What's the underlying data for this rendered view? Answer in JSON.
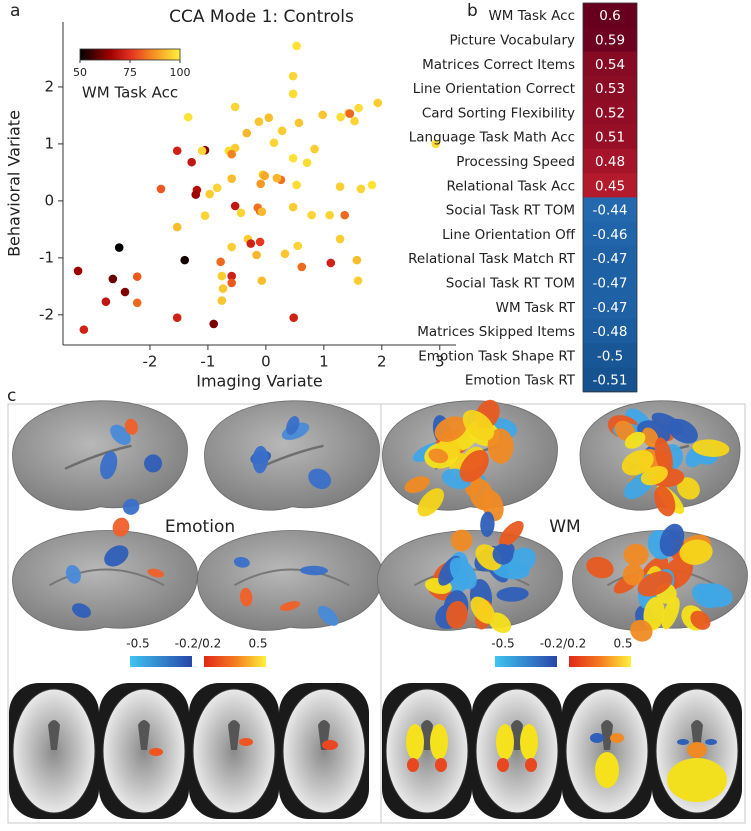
{
  "panel_labels": [
    "a",
    "b",
    "c"
  ],
  "chart_data": [
    {
      "type": "scatter",
      "title": "CCA Mode 1: Controls",
      "x_label": "Imaging Variate",
      "y_label": "Behavioral Variate",
      "x": [
        0.53,
        0.47,
        0.47,
        1.93,
        1.6,
        -0.53,
        0.98,
        1.43,
        1.45,
        1.29,
        -0.12,
        -0.33,
        1.53,
        -1.34,
        0.05,
        0.28,
        0.57,
        -1.53,
        -1.05,
        -1.1,
        -0.64,
        -0.53,
        -0.59,
        0.14,
        0.47,
        0.84,
        0.71,
        2.93,
        -1.28,
        -1.81,
        -1.19,
        -1.21,
        -0.97,
        -0.84,
        -0.59,
        -0.05,
        -0.09,
        0.26,
        0.19,
        -0.02,
        0.53,
        1.28,
        1.64,
        1.83,
        -0.53,
        -0.43,
        -0.14,
        -0.1,
        -0.07,
        0.47,
        0.79,
        1.1,
        1.36,
        -1.05,
        -1.53,
        -0.31,
        -0.26,
        -0.1,
        -0.59,
        -0.16,
        0.33,
        0.55,
        1.28,
        1.57,
        -2.53,
        -1.4,
        -3.24,
        -2.64,
        -2.22,
        -2.43,
        -2.76,
        -2.22,
        -3.14,
        -0.78,
        -0.76,
        -0.74,
        -0.76,
        -0.59,
        -0.59,
        -0.07,
        1.12,
        0.62,
        0.48,
        -1.53,
        -0.9,
        1.59
      ],
      "y": [
        2.72,
        2.19,
        1.88,
        1.72,
        1.63,
        1.65,
        1.51,
        1.54,
        1.53,
        1.47,
        1.39,
        1.19,
        1.4,
        1.47,
        1.46,
        1.23,
        1.37,
        0.88,
        0.89,
        0.88,
        0.88,
        0.93,
        0.82,
        1.02,
        0.75,
        0.91,
        0.67,
        1.0,
        0.68,
        0.21,
        0.19,
        0.11,
        0.12,
        0.23,
        0.39,
        0.46,
        0.3,
        0.37,
        0.4,
        0.44,
        0.28,
        0.25,
        0.21,
        0.28,
        -0.09,
        -0.21,
        -0.12,
        -0.18,
        -0.19,
        -0.11,
        -0.25,
        -0.25,
        -0.25,
        -0.26,
        -0.46,
        -0.67,
        -0.75,
        -0.72,
        -0.81,
        -0.95,
        -0.93,
        -0.79,
        -0.67,
        -1.04,
        -0.82,
        -1.04,
        -1.23,
        -1.37,
        -1.33,
        -1.6,
        -1.77,
        -1.79,
        -2.26,
        -1.07,
        -1.32,
        -1.54,
        -1.75,
        -1.32,
        -1.44,
        -1.4,
        -1.09,
        -1.16,
        -2.05,
        -2.05,
        -2.16,
        -1.4
      ],
      "c": [
        98,
        96,
        97,
        95,
        97,
        96,
        94,
        92,
        82,
        97,
        94,
        92,
        96,
        98,
        93,
        95,
        94,
        72,
        62,
        96,
        97,
        95,
        85,
        96,
        98,
        95,
        97,
        97,
        70,
        80,
        68,
        65,
        95,
        96,
        93,
        94,
        88,
        83,
        92,
        90,
        97,
        95,
        96,
        98,
        70,
        96,
        83,
        82,
        92,
        95,
        96,
        96,
        82,
        96,
        93,
        95,
        72,
        76,
        95,
        92,
        94,
        96,
        95,
        93,
        50,
        52,
        65,
        60,
        80,
        62,
        70,
        82,
        72,
        82,
        95,
        94,
        94,
        72,
        80,
        93,
        72,
        82,
        72,
        72,
        62,
        95
      ],
      "xlim": [
        -3.5,
        3.28
      ],
      "ylim": [
        -2.53,
        3.14
      ],
      "xticks": [
        -2,
        -1,
        0,
        1,
        2,
        3
      ],
      "yticks": [
        -2,
        -1,
        0,
        1,
        2
      ],
      "colormap": "hot",
      "clim": [
        50,
        100
      ],
      "cticks": [
        50,
        75,
        100
      ],
      "colorbar_label": "WM Task Acc"
    },
    {
      "type": "heatmap",
      "colormap": "RdBu_r",
      "clim": [
        -0.6,
        0.6
      ],
      "categories": [
        "WM Task Acc",
        "Picture Vocabulary",
        "Matrices Correct Items",
        "Line Orientation Correct",
        "Card Sorting Flexibility",
        "Language Task Math Acc",
        "Processing Speed",
        "Relational Task Acc",
        "Social Task RT TOM",
        "Line Orientation Off",
        "Relational Task Match RT",
        "Social Task RT TOM",
        "WM Task RT",
        "Matrices Skipped Items",
        "Emotion Task Shape RT",
        "Emotion Task RT"
      ],
      "values": [
        0.6,
        0.59,
        0.54,
        0.53,
        0.52,
        0.51,
        0.48,
        0.45,
        -0.44,
        -0.46,
        -0.47,
        -0.47,
        -0.47,
        -0.48,
        -0.5,
        -0.51
      ]
    }
  ],
  "brain_panels": [
    {
      "label": "Emotion",
      "colorbar_ticks": [
        "-0.5",
        "-0.2/0.2",
        "0.5"
      ]
    },
    {
      "label": "WM",
      "colorbar_ticks": [
        "-0.5",
        "-0.2/0.2",
        "0.5"
      ]
    }
  ]
}
